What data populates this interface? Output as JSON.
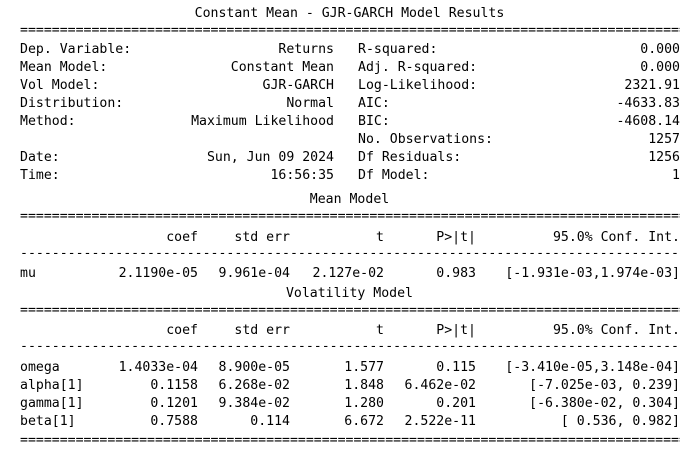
{
  "title": "Constant Mean - GJR-GARCH Model Results",
  "double_rule": "====================================================================================================",
  "single_rule": "----------------------------------------------------------------------------------------------------",
  "summary_left": [
    {
      "label": "Dep. Variable:",
      "value": "Returns"
    },
    {
      "label": "Mean Model:",
      "value": "Constant Mean"
    },
    {
      "label": "Vol Model:",
      "value": "GJR-GARCH"
    },
    {
      "label": "Distribution:",
      "value": "Normal"
    },
    {
      "label": "Method:",
      "value": "Maximum Likelihood"
    },
    {
      "label": "",
      "value": ""
    },
    {
      "label": "Date:",
      "value": "Sun, Jun 09 2024"
    },
    {
      "label": "Time:",
      "value": "16:56:35"
    }
  ],
  "summary_right": [
    {
      "label": "R-squared:",
      "value": "0.000"
    },
    {
      "label": "Adj. R-squared:",
      "value": "0.000"
    },
    {
      "label": "Log-Likelihood:",
      "value": "2321.91"
    },
    {
      "label": "AIC:",
      "value": "-4633.83"
    },
    {
      "label": "BIC:",
      "value": "-4608.14"
    },
    {
      "label": "No. Observations:",
      "value": "1257"
    },
    {
      "label": "Df Residuals:",
      "value": "1256"
    },
    {
      "label": "Df Model:",
      "value": "1"
    }
  ],
  "mean_model": {
    "title": "Mean Model",
    "headers": [
      "coef",
      "std err",
      "t",
      "P>|t|",
      "95.0% Conf. Int."
    ],
    "rows": [
      {
        "name": "mu",
        "coef": "2.1190e-05",
        "std_err": "9.961e-04",
        "t": "2.127e-02",
        "p": "0.983",
        "ci": "[-1.931e-03,1.974e-03]"
      }
    ]
  },
  "volatility_model": {
    "title": "Volatility Model",
    "headers": [
      "coef",
      "std err",
      "t",
      "P>|t|",
      "95.0% Conf. Int."
    ],
    "rows": [
      {
        "name": "omega",
        "coef": "1.4033e-04",
        "std_err": "8.900e-05",
        "t": "1.577",
        "p": "0.115",
        "ci": "[-3.410e-05,3.148e-04]"
      },
      {
        "name": "alpha[1]",
        "coef": "0.1158",
        "std_err": "6.268e-02",
        "t": "1.848",
        "p": "6.462e-02",
        "ci": "[-7.025e-03, 0.239]"
      },
      {
        "name": "gamma[1]",
        "coef": "0.1201",
        "std_err": "9.384e-02",
        "t": "1.280",
        "p": "0.201",
        "ci": "[-6.380e-02, 0.304]"
      },
      {
        "name": "beta[1]",
        "coef": "0.7588",
        "std_err": "0.114",
        "t": "6.672",
        "p": "2.522e-11",
        "ci": "[ 0.536, 0.982]"
      }
    ]
  }
}
